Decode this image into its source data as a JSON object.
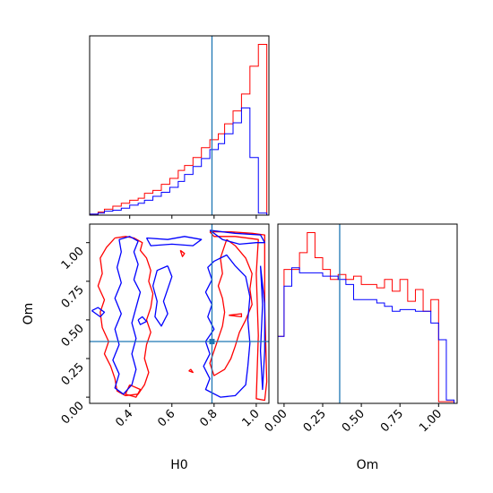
{
  "chart_data": [
    {
      "type": "histogram",
      "panel": "H0 marginal",
      "xlim": [
        0.21,
        1.06
      ],
      "bin_edges": [
        0.21,
        0.25,
        0.28,
        0.32,
        0.36,
        0.4,
        0.44,
        0.47,
        0.51,
        0.55,
        0.59,
        0.63,
        0.66,
        0.7,
        0.74,
        0.78,
        0.82,
        0.85,
        0.89,
        0.93,
        0.97,
        1.01,
        1.05
      ],
      "series": [
        {
          "color": "#ff0000",
          "values": [
            1,
            3,
            6,
            9,
            12,
            15,
            17,
            22,
            25,
            31,
            37,
            45,
            50,
            58,
            68,
            76,
            82,
            92,
            105,
            122,
            150,
            172
          ]
        },
        {
          "color": "#0000ff",
          "values": [
            1,
            2,
            4,
            5,
            7,
            10,
            12,
            15,
            19,
            23,
            28,
            34,
            41,
            49,
            57,
            66,
            72,
            82,
            93,
            108,
            58,
            2
          ]
        }
      ],
      "truth_line": {
        "x": 0.79,
        "color": "#1f77b4"
      },
      "yticks_shown": false
    },
    {
      "type": "contour",
      "panel": "H0 vs Om",
      "xlim": [
        0.21,
        1.06
      ],
      "ylim": [
        -0.04,
        1.12
      ],
      "xticks": [
        "0.4",
        "0.6",
        "0.8",
        "1.0"
      ],
      "yticks": [
        "0.00",
        "0.25",
        "0.50",
        "0.75",
        "1.00"
      ],
      "xlabel": "H0",
      "ylabel": "Om",
      "series": [
        {
          "color": "#ff0000",
          "contours": [
            [
              [
                0.33,
                1.03
              ],
              [
                0.38,
                1.04
              ],
              [
                0.42,
                1.03
              ],
              [
                0.46,
                1.0
              ],
              [
                0.45,
                0.95
              ],
              [
                0.48,
                0.9
              ],
              [
                0.5,
                0.82
              ],
              [
                0.49,
                0.75
              ],
              [
                0.51,
                0.67
              ],
              [
                0.5,
                0.58
              ],
              [
                0.48,
                0.5
              ],
              [
                0.5,
                0.42
              ],
              [
                0.48,
                0.34
              ],
              [
                0.47,
                0.25
              ],
              [
                0.49,
                0.16
              ],
              [
                0.47,
                0.08
              ],
              [
                0.44,
                0.02
              ],
              [
                0.38,
                0.01
              ],
              [
                0.34,
                0.04
              ],
              [
                0.33,
                0.12
              ],
              [
                0.31,
                0.2
              ],
              [
                0.28,
                0.28
              ],
              [
                0.3,
                0.36
              ],
              [
                0.27,
                0.45
              ],
              [
                0.26,
                0.55
              ],
              [
                0.28,
                0.63
              ],
              [
                0.25,
                0.72
              ],
              [
                0.27,
                0.8
              ],
              [
                0.26,
                0.9
              ],
              [
                0.29,
                0.97
              ],
              [
                0.33,
                1.03
              ]
            ],
            [
              [
                0.78,
                1.07
              ],
              [
                0.88,
                1.07
              ],
              [
                0.98,
                1.06
              ],
              [
                1.04,
                1.05
              ],
              [
                1.04,
                0.6
              ],
              [
                1.05,
                0.1
              ],
              [
                1.04,
                -0.02
              ],
              [
                1.0,
                -0.01
              ],
              [
                1.01,
                0.4
              ],
              [
                1.0,
                0.8
              ],
              [
                1.01,
                1.02
              ],
              [
                0.9,
                1.04
              ],
              [
                0.8,
                1.04
              ],
              [
                0.78,
                1.07
              ]
            ],
            [
              [
                0.86,
                1.02
              ],
              [
                0.9,
                0.98
              ],
              [
                0.95,
                0.9
              ],
              [
                0.98,
                0.8
              ],
              [
                0.97,
                0.7
              ],
              [
                0.98,
                0.6
              ],
              [
                0.95,
                0.5
              ],
              [
                0.92,
                0.42
              ],
              [
                0.9,
                0.33
              ],
              [
                0.88,
                0.25
              ],
              [
                0.85,
                0.18
              ],
              [
                0.8,
                0.14
              ],
              [
                0.78,
                0.22
              ],
              [
                0.8,
                0.3
              ],
              [
                0.82,
                0.38
              ],
              [
                0.84,
                0.46
              ],
              [
                0.85,
                0.55
              ],
              [
                0.84,
                0.64
              ],
              [
                0.82,
                0.72
              ],
              [
                0.84,
                0.8
              ],
              [
                0.83,
                0.9
              ],
              [
                0.86,
                1.02
              ]
            ],
            [
              [
                0.4,
                0.08
              ],
              [
                0.45,
                0.05
              ],
              [
                0.43,
                0.0
              ],
              [
                0.38,
                0.02
              ],
              [
                0.4,
                0.08
              ]
            ],
            [
              [
                0.68,
                0.17
              ],
              [
                0.69,
                0.18
              ],
              [
                0.7,
                0.16
              ],
              [
                0.68,
                0.17
              ]
            ],
            [
              [
                0.64,
                0.95
              ],
              [
                0.66,
                0.93
              ],
              [
                0.65,
                0.91
              ],
              [
                0.64,
                0.95
              ]
            ],
            [
              [
                0.87,
                0.53
              ],
              [
                0.93,
                0.54
              ],
              [
                0.93,
                0.52
              ],
              [
                0.87,
                0.53
              ]
            ]
          ]
        },
        {
          "color": "#0000ff",
          "contours": [
            [
              [
                0.35,
                1.02
              ],
              [
                0.4,
                1.04
              ],
              [
                0.44,
                1.01
              ],
              [
                0.42,
                0.94
              ],
              [
                0.44,
                0.86
              ],
              [
                0.42,
                0.76
              ],
              [
                0.45,
                0.68
              ],
              [
                0.43,
                0.58
              ],
              [
                0.41,
                0.48
              ],
              [
                0.43,
                0.38
              ],
              [
                0.41,
                0.28
              ],
              [
                0.43,
                0.18
              ],
              [
                0.41,
                0.08
              ],
              [
                0.37,
                0.02
              ],
              [
                0.33,
                0.06
              ],
              [
                0.35,
                0.15
              ],
              [
                0.32,
                0.24
              ],
              [
                0.35,
                0.34
              ],
              [
                0.33,
                0.44
              ],
              [
                0.36,
                0.54
              ],
              [
                0.33,
                0.64
              ],
              [
                0.36,
                0.74
              ],
              [
                0.34,
                0.84
              ],
              [
                0.36,
                0.94
              ],
              [
                0.35,
                1.02
              ]
            ],
            [
              [
                0.48,
                1.03
              ],
              [
                0.58,
                1.02
              ],
              [
                0.66,
                1.04
              ],
              [
                0.74,
                1.02
              ],
              [
                0.7,
                0.98
              ],
              [
                0.6,
                0.99
              ],
              [
                0.5,
                0.98
              ],
              [
                0.48,
                1.03
              ]
            ],
            [
              [
                0.58,
                0.85
              ],
              [
                0.6,
                0.78
              ],
              [
                0.58,
                0.7
              ],
              [
                0.56,
                0.62
              ],
              [
                0.58,
                0.54
              ],
              [
                0.55,
                0.46
              ],
              [
                0.52,
                0.52
              ],
              [
                0.53,
                0.62
              ],
              [
                0.51,
                0.72
              ],
              [
                0.53,
                0.82
              ],
              [
                0.58,
                0.85
              ]
            ],
            [
              [
                0.78,
                1.08
              ],
              [
                0.9,
                1.06
              ],
              [
                1.02,
                1.05
              ],
              [
                1.04,
                1.0
              ],
              [
                1.0,
                1.0
              ],
              [
                0.92,
                0.99
              ],
              [
                0.84,
                1.02
              ],
              [
                0.78,
                1.08
              ]
            ],
            [
              [
                0.8,
                0.88
              ],
              [
                0.86,
                0.92
              ],
              [
                0.9,
                0.85
              ],
              [
                0.95,
                0.78
              ],
              [
                0.97,
                0.65
              ],
              [
                0.96,
                0.5
              ],
              [
                0.97,
                0.35
              ],
              [
                0.96,
                0.2
              ],
              [
                0.95,
                0.08
              ],
              [
                0.9,
                0.01
              ],
              [
                0.83,
                0.0
              ],
              [
                0.76,
                0.05
              ],
              [
                0.78,
                0.12
              ],
              [
                0.75,
                0.2
              ],
              [
                0.78,
                0.28
              ],
              [
                0.76,
                0.36
              ],
              [
                0.8,
                0.44
              ],
              [
                0.77,
                0.52
              ],
              [
                0.79,
                0.6
              ],
              [
                0.76,
                0.68
              ],
              [
                0.79,
                0.76
              ],
              [
                0.77,
                0.84
              ],
              [
                0.8,
                0.88
              ]
            ],
            [
              [
                1.02,
                0.85
              ],
              [
                1.03,
                0.6
              ],
              [
                1.02,
                0.3
              ],
              [
                1.03,
                0.05
              ],
              [
                1.04,
                0.3
              ],
              [
                1.04,
                0.6
              ],
              [
                1.02,
                0.85
              ]
            ],
            [
              [
                0.22,
                0.56
              ],
              [
                0.25,
                0.58
              ],
              [
                0.28,
                0.55
              ],
              [
                0.26,
                0.52
              ],
              [
                0.22,
                0.56
              ]
            ],
            [
              [
                0.44,
                0.5
              ],
              [
                0.46,
                0.52
              ],
              [
                0.48,
                0.49
              ],
              [
                0.45,
                0.47
              ],
              [
                0.44,
                0.5
              ]
            ]
          ]
        }
      ],
      "truth_point": {
        "x": 0.79,
        "y": 0.36,
        "color": "#1f77b4"
      }
    },
    {
      "type": "histogram",
      "panel": "Om marginal",
      "xlim": [
        -0.04,
        1.12
      ],
      "xticks": [
        "0.00",
        "0.25",
        "0.50",
        "0.75",
        "1.00"
      ],
      "xlabel": "Om",
      "bin_edges": [
        -0.04,
        0.0,
        0.05,
        0.1,
        0.15,
        0.2,
        0.25,
        0.3,
        0.35,
        0.4,
        0.45,
        0.5,
        0.55,
        0.6,
        0.65,
        0.7,
        0.75,
        0.8,
        0.85,
        0.9,
        0.95,
        1.0,
        1.05,
        1.1
      ],
      "series": [
        {
          "color": "#ff0000",
          "values": [
            40,
            80,
            80,
            90,
            102,
            87,
            80,
            74,
            77,
            74,
            76,
            71,
            71,
            69,
            74,
            67,
            74,
            61,
            68,
            55,
            62,
            1,
            1
          ]
        },
        {
          "color": "#0000ff",
          "values": [
            40,
            70,
            81,
            78,
            78,
            78,
            76,
            76,
            74,
            71,
            62,
            62,
            62,
            60,
            58,
            55,
            56,
            56,
            55,
            55,
            48,
            38,
            2
          ]
        }
      ],
      "truth_line": {
        "x": 0.36,
        "color": "#1f77b4"
      },
      "yticks_shown": false
    }
  ]
}
